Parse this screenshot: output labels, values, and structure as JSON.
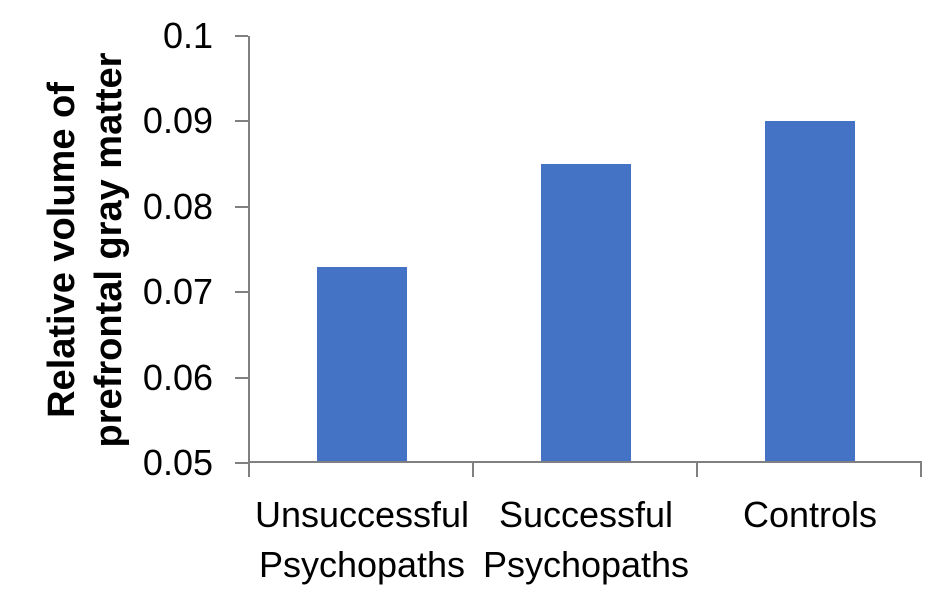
{
  "chart_data": {
    "type": "bar",
    "title": "",
    "categories": [
      {
        "name": "Unsuccessful Psychopaths",
        "lines": [
          "Unsuccessful",
          "Psychopaths"
        ]
      },
      {
        "name": "Successful Psychopaths",
        "lines": [
          "Successful",
          "Psychopaths"
        ]
      },
      {
        "name": "Controls",
        "lines": [
          "Controls"
        ]
      }
    ],
    "values": [
      0.073,
      0.085,
      0.09
    ],
    "ylabel": "Relative volume of prefrontal gray matter",
    "ylabel_lines": [
      "Relative volume of",
      "prefrontal gray matter"
    ],
    "ylim": [
      0.05,
      0.1
    ],
    "yticks": [
      {
        "value": 0.05,
        "label": "0.05"
      },
      {
        "value": 0.06,
        "label": "0.06"
      },
      {
        "value": 0.07,
        "label": "0.07"
      },
      {
        "value": 0.08,
        "label": "0.08"
      },
      {
        "value": 0.09,
        "label": "0.09"
      },
      {
        "value": 0.1,
        "label": "0.1"
      }
    ],
    "grid": false,
    "legend": "none",
    "colors": {
      "bar": "#4472C4",
      "axis": "#808080",
      "text": "#000000",
      "background": "#ffffff"
    }
  }
}
